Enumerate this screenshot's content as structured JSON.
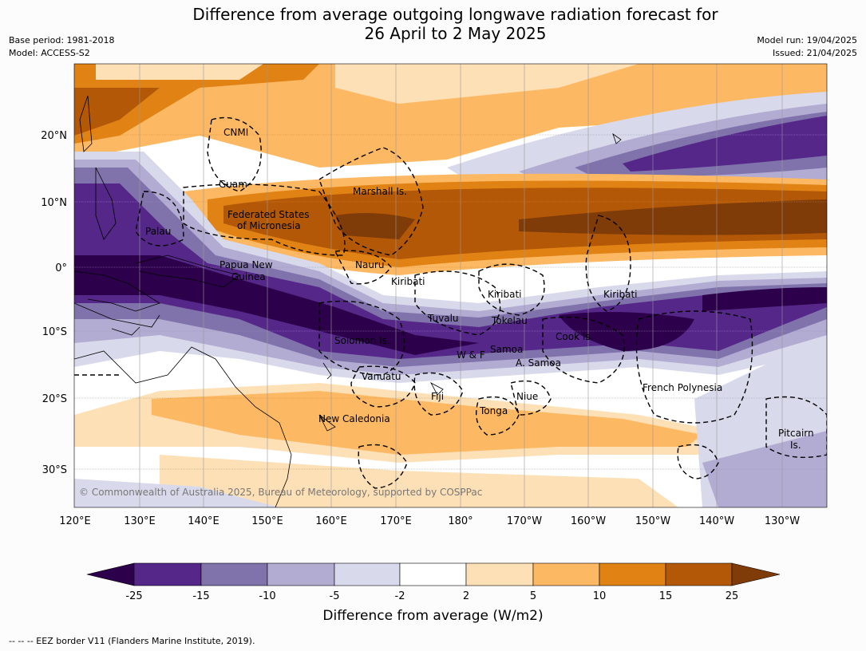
{
  "title_line1": "Difference from average outgoing longwave radiation forecast for",
  "title_line2": "26 April to 2 May 2025",
  "base_period": "Base period: 1981-2018",
  "model": "Model: ACCESS-S2",
  "model_run": "Model run: 19/04/2025",
  "issued": "Issued: 21/04/2025",
  "copyright": "© Commonwealth of Australia 2025, Bureau of Meteorology, supported by COSPPac",
  "lon_ticks": [
    "120°E",
    "130°E",
    "140°E",
    "150°E",
    "160°E",
    "170°E",
    "180°",
    "170°W",
    "160°W",
    "150°W",
    "140°W",
    "130°W"
  ],
  "lat_ticks": [
    "20°N",
    "10°N",
    "0°",
    "10°S",
    "20°S",
    "30°S"
  ],
  "places": {
    "cnmi": "CNMI",
    "guam": "Guam",
    "marshall": "Marshall Is.",
    "fsm1": "Federated States",
    "fsm2": "of Micronesia",
    "palau": "Palau",
    "png1": "Papua New",
    "png2": "Guinea",
    "nauru": "Nauru",
    "kiribati1": "Kiribati",
    "kiribati2": "Kiribati",
    "kiribati3": "Kiribati",
    "tuvalu": "Tuvalu",
    "tokelau": "Tokelau",
    "solomon": "Solomon Is.",
    "wf": "W & F",
    "samoa": "Samoa",
    "asamoa": "A. Samoa",
    "cook": "Cook Is.",
    "vanuatu": "Vanuatu",
    "fiji": "Fiji",
    "niue": "Niue",
    "tonga": "Tonga",
    "frpoly": "French Polynesia",
    "newcal": "New Caledonia",
    "pitcairn1": "Pitcairn",
    "pitcairn2": "Is."
  },
  "colorbar": {
    "ticks": [
      "-25",
      "-15",
      "-10",
      "-5",
      "-2",
      "2",
      "5",
      "10",
      "15",
      "25"
    ],
    "title": "Difference from average (W/m2)",
    "colors": [
      "#2d004b",
      "#542788",
      "#8073ac",
      "#b2abd2",
      "#d8daeb",
      "#ffffff",
      "#fee0b6",
      "#fdb863",
      "#e08214",
      "#b35806",
      "#7f3b08"
    ]
  },
  "footnote": "--  --  -- EEZ border V11 (Flanders Marine Institute, 2019)."
}
